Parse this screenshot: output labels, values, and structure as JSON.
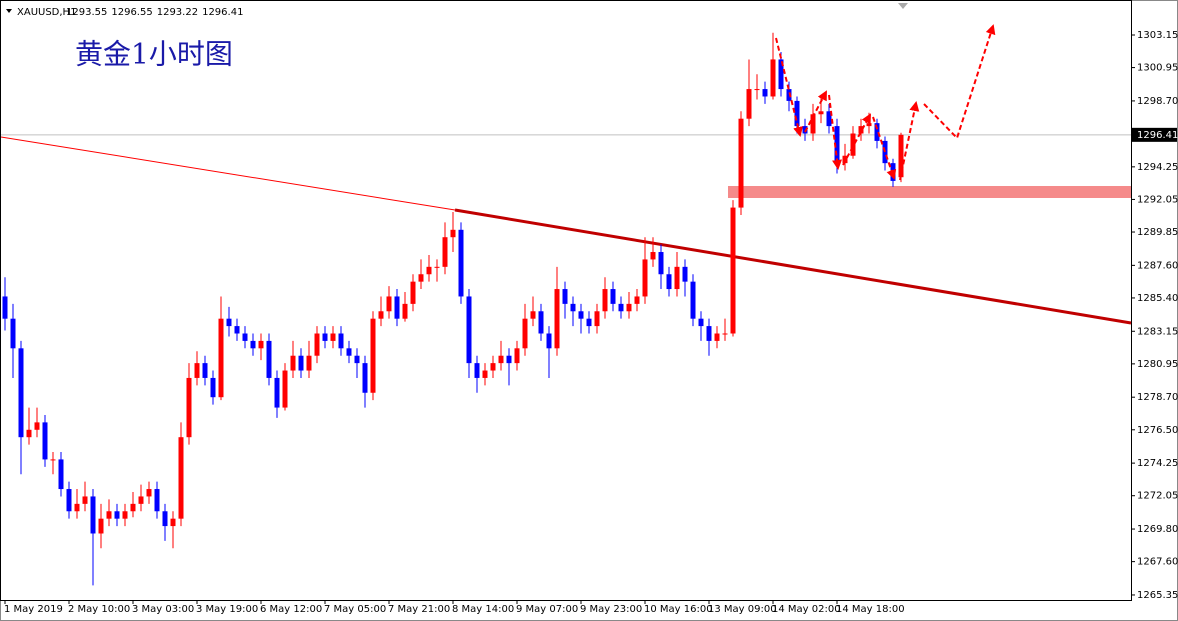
{
  "chart_data": {
    "type": "candlestick",
    "symbol": "XAUUSD,H1",
    "title": "黄金1小时图",
    "categories": [
      "1 May 2019",
      null,
      null,
      null,
      null,
      null,
      null,
      null,
      "2 May 10:00",
      null,
      null,
      null,
      null,
      null,
      null,
      null,
      "3 May 03:00",
      null,
      null,
      null,
      null,
      null,
      null,
      null,
      "3 May 19:00",
      null,
      null,
      null,
      null,
      null,
      null,
      null,
      "6 May 12:00",
      null,
      null,
      null,
      null,
      null,
      null,
      null,
      "7 May 05:00",
      null,
      null,
      null,
      null,
      null,
      null,
      null,
      "7 May 21:00",
      null,
      null,
      null,
      null,
      null,
      null,
      null,
      "8 May 14:00",
      null,
      null,
      null,
      null,
      null,
      null,
      null,
      "9 May 07:00",
      null,
      null,
      null,
      null,
      null,
      null,
      null,
      "9 May 23:00",
      null,
      null,
      null,
      null,
      null,
      null,
      null,
      "10 May 16:00",
      null,
      null,
      null,
      null,
      null,
      null,
      null,
      "13 May 09:00",
      null,
      null,
      null,
      null,
      null,
      null,
      null,
      "14 May 02:00",
      null,
      null,
      null,
      null,
      null,
      null,
      null,
      "14 May 18:00",
      null,
      null,
      null,
      null,
      null,
      null,
      null,
      null
    ],
    "open": [
      1285.5,
      1284,
      1282,
      1276,
      1276.5,
      1277,
      1274.5,
      1274.5,
      1272.5,
      1271,
      1271.5,
      1272,
      1269.5,
      1270.5,
      1271,
      1270.5,
      1271,
      1271.5,
      1272,
      1272.5,
      1271,
      1270,
      1270.5,
      1276,
      1280,
      1281,
      1280,
      1278.7,
      1284,
      1283.5,
      1283,
      1282.5,
      1282,
      1282.5,
      1280,
      1278,
      1280.5,
      1281.5,
      1280.5,
      1281.5,
      1283,
      1282.5,
      1283,
      1282,
      1281.5,
      1281,
      1279,
      1284,
      1284.5,
      1285.5,
      1284,
      1285,
      1286.5,
      1287,
      1287.5,
      1287.5,
      1289.5,
      1290,
      1285.5,
      1281,
      1280,
      1280.5,
      1281,
      1281.5,
      1281,
      1282,
      1284,
      1284.5,
      1283,
      1282,
      1286,
      1285,
      1284.5,
      1284,
      1283.5,
      1284.5,
      1286,
      1285,
      1284.5,
      1285,
      1285.5,
      1288,
      1288.5,
      1287,
      1286,
      1287.5,
      1286.5,
      1284,
      1283.5,
      1282.5,
      1283,
      1283,
      1291.5,
      1297.5,
      1299.5,
      1299.5,
      1299,
      1301.5,
      1299.5,
      1298.7,
      1297,
      1296.5,
      1297.8,
      1298,
      1297,
      1294.5,
      1295,
      1296.5,
      1297,
      1297.2,
      1296,
      1294.5,
      1293.55
    ],
    "high": [
      1286.8,
      1285,
      1282.5,
      1278,
      1278,
      1277.5,
      1275,
      1275,
      1273,
      1272.5,
      1273,
      1272.5,
      1271.5,
      1271.8,
      1271.5,
      1271.5,
      1272.3,
      1272.8,
      1273,
      1273,
      1271.5,
      1271,
      1277,
      1281,
      1281.8,
      1281.5,
      1280.5,
      1285.5,
      1284.8,
      1284,
      1283.5,
      1283,
      1283,
      1283,
      1280.5,
      1281,
      1282.5,
      1282,
      1282.5,
      1283.5,
      1283.5,
      1283.5,
      1283.5,
      1282.5,
      1282,
      1281.5,
      1284.5,
      1285.5,
      1286.2,
      1286,
      1285.8,
      1287,
      1288,
      1288.3,
      1288,
      1290.5,
      1291.2,
      1290.5,
      1286,
      1281.5,
      1281,
      1281.5,
      1282.5,
      1282,
      1282.5,
      1285,
      1285.5,
      1285,
      1283.5,
      1287.5,
      1286.5,
      1285.5,
      1285,
      1284.5,
      1285,
      1286.8,
      1286.5,
      1285.5,
      1285.8,
      1286,
      1289.5,
      1289.5,
      1289,
      1287.5,
      1288.5,
      1288,
      1287,
      1284.5,
      1284,
      1283.5,
      1284,
      1292,
      1298,
      1301.5,
      1300.5,
      1300,
      1303.3,
      1302,
      1300,
      1299,
      1297.5,
      1298.5,
      1299,
      1298.5,
      1297.5,
      1295.8,
      1297,
      1297.5,
      1297.9,
      1297.5,
      1296.3,
      1294.8,
      1296.55
    ],
    "low": [
      1283.2,
      1280,
      1273.5,
      1275.5,
      1276,
      1274,
      1273.5,
      1272,
      1270.5,
      1270.5,
      1271,
      1266,
      1268.5,
      1270,
      1270,
      1270,
      1270.6,
      1271,
      1271.5,
      1270.5,
      1269,
      1268.5,
      1270,
      1275.5,
      1279.5,
      1279.5,
      1278.2,
      1278.5,
      1282.8,
      1282.5,
      1282,
      1281.5,
      1281.2,
      1279.5,
      1277.3,
      1277.8,
      1280,
      1280,
      1280,
      1281,
      1282,
      1282,
      1281.5,
      1281,
      1280,
      1278,
      1278.5,
      1283.5,
      1284,
      1283.5,
      1283.8,
      1284.5,
      1286,
      1286.5,
      1286.5,
      1287,
      1288.5,
      1285,
      1280,
      1279,
      1279.5,
      1280,
      1280.5,
      1279.5,
      1280.5,
      1281.5,
      1283.5,
      1282.5,
      1280,
      1281.5,
      1284,
      1283.5,
      1283,
      1283,
      1283,
      1284,
      1284.5,
      1284,
      1284,
      1284.5,
      1285,
      1287.5,
      1286,
      1285.5,
      1285.5,
      1285.5,
      1283.5,
      1282.5,
      1281.5,
      1282,
      1282.5,
      1282.8,
      1291,
      1297,
      1298.8,
      1298.5,
      1298.8,
      1299,
      1298,
      1296.5,
      1296,
      1296,
      1297.2,
      1296.5,
      1293.8,
      1294,
      1294.8,
      1296,
      1296.5,
      1295.5,
      1294,
      1292.9,
      1293.22
    ],
    "close": [
      1284,
      1282,
      1276,
      1276.5,
      1277,
      1274.5,
      1274.5,
      1272.5,
      1271,
      1271.5,
      1272,
      1269.5,
      1270.5,
      1271,
      1270.5,
      1271,
      1271.5,
      1272,
      1272.5,
      1271,
      1270,
      1270.5,
      1276,
      1280,
      1281,
      1280,
      1278.7,
      1284,
      1283.5,
      1283,
      1282.5,
      1282,
      1282.5,
      1280,
      1278,
      1280.5,
      1281.5,
      1280.5,
      1281.5,
      1283,
      1282.5,
      1283,
      1282,
      1281.5,
      1281,
      1279,
      1284,
      1284.5,
      1285.5,
      1284,
      1285,
      1286.5,
      1287,
      1287.5,
      1287.5,
      1289.5,
      1290,
      1285.5,
      1281,
      1280,
      1280.5,
      1281,
      1281.5,
      1281,
      1282,
      1284,
      1284.5,
      1283,
      1282,
      1286,
      1285,
      1284.5,
      1284,
      1283.5,
      1284.5,
      1286,
      1285,
      1284.5,
      1285,
      1285.5,
      1288,
      1288.5,
      1287,
      1286,
      1287.5,
      1286.5,
      1284,
      1283.5,
      1282.5,
      1283,
      1283,
      1291.5,
      1297.5,
      1299.5,
      1299.5,
      1299,
      1301.5,
      1299.5,
      1298.7,
      1297,
      1296.5,
      1297.8,
      1298,
      1297,
      1294.5,
      1295,
      1296.5,
      1297,
      1297.2,
      1296,
      1294.5,
      1293.3,
      1296.41
    ],
    "up_color": "#ff0000",
    "down_color": "#0000ff",
    "ylim": [
      1265.01,
      1305.31
    ],
    "yticks": [
      1265.35,
      {
        "value": 1267.6,
        "label": "1267.60"
      },
      {
        "value": 1269.8,
        "label": "1269.80"
      },
      1272.05,
      1274.25,
      {
        "value": 1276.5,
        "label": "1276.50"
      },
      {
        "value": 1278.7,
        "label": "1278.70"
      },
      1280.95,
      1283.15,
      {
        "value": 1285.4,
        "label": "1285.40"
      },
      {
        "value": 1287.6,
        "label": "1287.60"
      },
      1289.85,
      1292.05,
      1294.25,
      {
        "value": 1298.7,
        "label": "1298.70"
      },
      1300.95,
      1303.15
    ],
    "grid": false
  }
}
